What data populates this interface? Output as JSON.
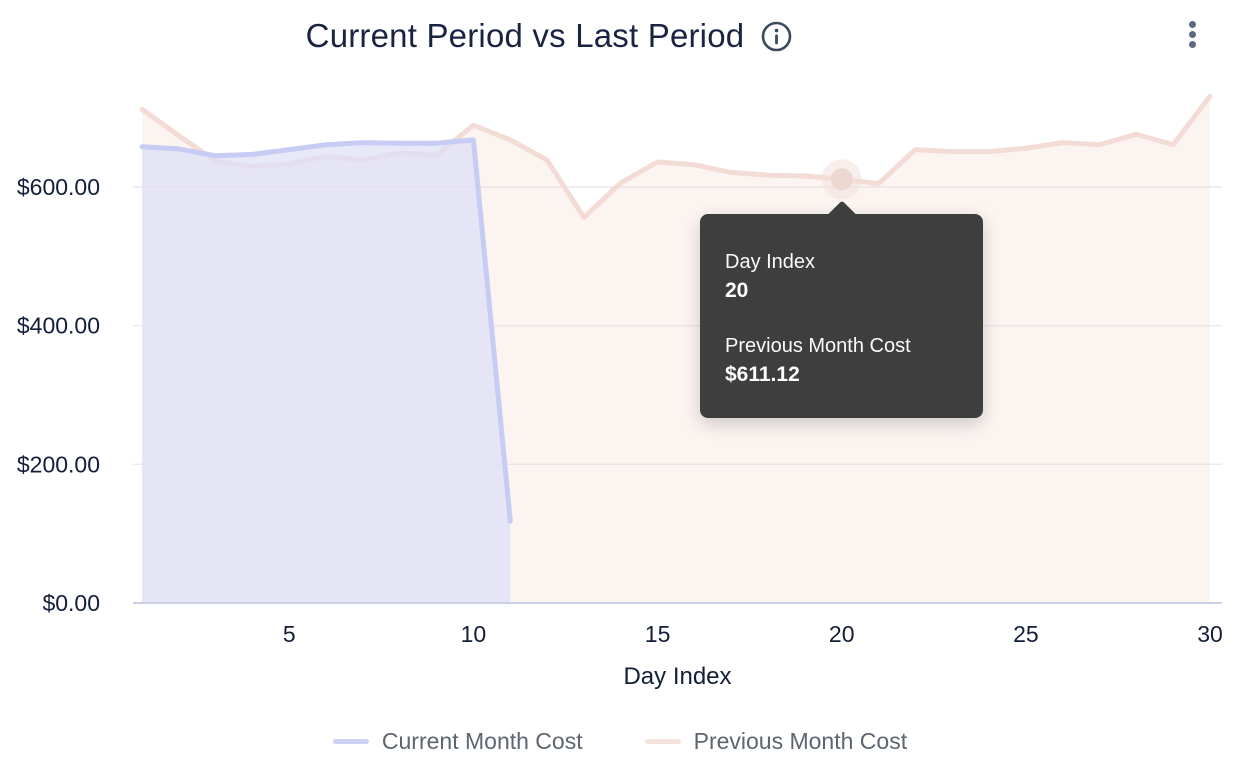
{
  "header": {
    "title": "Current Period vs Last Period",
    "info_icon": "info-circle",
    "menu_icon": "kebab-vertical"
  },
  "tooltip": {
    "rows": [
      {
        "label": "Day Index",
        "value": "20"
      },
      {
        "label": "Previous Month Cost",
        "value": "$611.12"
      }
    ]
  },
  "legend": {
    "items": [
      {
        "label": "Current Month Cost",
        "color": "#ccd2f5"
      },
      {
        "label": "Previous Month Cost",
        "color": "#f6e2dc"
      }
    ]
  },
  "chart_data": {
    "type": "area",
    "title": "Current Period vs Last Period",
    "xlabel": "Day Index",
    "ylabel": "",
    "x": [
      1,
      2,
      3,
      4,
      5,
      6,
      7,
      8,
      9,
      10,
      11,
      12,
      13,
      14,
      15,
      16,
      17,
      18,
      19,
      20,
      21,
      22,
      23,
      24,
      25,
      26,
      27,
      28,
      29,
      30
    ],
    "x_ticks": [
      5,
      10,
      15,
      20,
      25,
      30
    ],
    "y_ticks": [
      {
        "value": 0,
        "label": "$0.00"
      },
      {
        "value": 200,
        "label": "$200.00"
      },
      {
        "value": 400,
        "label": "$400.00"
      },
      {
        "value": 600,
        "label": "$600.00"
      }
    ],
    "xlim": [
      1,
      30
    ],
    "ylim": [
      0,
      745
    ],
    "grid": true,
    "legend_position": "bottom",
    "series": [
      {
        "name": "Current Month Cost",
        "line_color": "#c6ccf4",
        "fill_color": "rgba(223,224,246,0.75)",
        "values": [
          658,
          655,
          645,
          647,
          654,
          661,
          664,
          663,
          663,
          668,
          118
        ]
      },
      {
        "name": "Previous Month Cost",
        "line_color": "#f2dcd5",
        "fill_color": "rgba(247,220,213,0.32)",
        "values": [
          712,
          674,
          637,
          630,
          633,
          644,
          639,
          649,
          646,
          689,
          668,
          639,
          556,
          606,
          636,
          632,
          621,
          617,
          616,
          611.12,
          605,
          654,
          651,
          651,
          656,
          664,
          661,
          676,
          661,
          731
        ]
      }
    ],
    "highlight": {
      "series": "Previous Month Cost",
      "x": 20,
      "value": 611.12
    }
  }
}
